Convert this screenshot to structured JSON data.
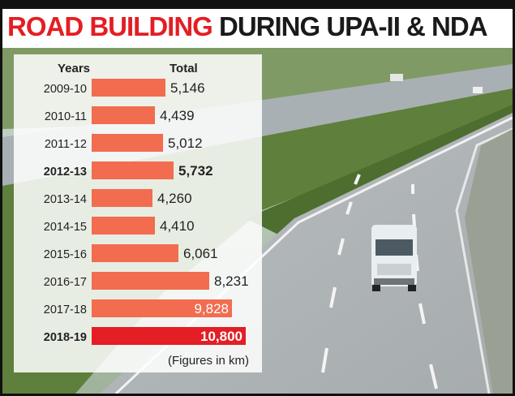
{
  "title": {
    "part1": "ROAD BUILDING",
    "part2": "DURING UPA-II & NDA"
  },
  "colors": {
    "bar": "#f26c4f",
    "bar_highlight": "#e31e24",
    "title_red": "#e31e24",
    "title_dark": "#1a1a1a"
  },
  "chart_data": {
    "type": "bar",
    "orientation": "horizontal",
    "header_category": "Years",
    "header_value": "Total",
    "categories": [
      "2009-10",
      "2010-11",
      "2011-12",
      "2012-13",
      "2013-14",
      "2014-15",
      "2015-16",
      "2016-17",
      "2017-18",
      "2018-19"
    ],
    "values": [
      5146,
      4439,
      5012,
      5732,
      4260,
      4410,
      6061,
      8231,
      9828,
      10800
    ],
    "value_labels": [
      "5,146",
      "4,439",
      "5,012",
      "5,732",
      "4,260",
      "4,410",
      "6,061",
      "8,231",
      "9,828",
      "10,800"
    ],
    "highlighted": [
      "2012-13",
      "2018-19"
    ],
    "note": "(Figures in km)",
    "xlim": [
      0,
      10800
    ]
  }
}
